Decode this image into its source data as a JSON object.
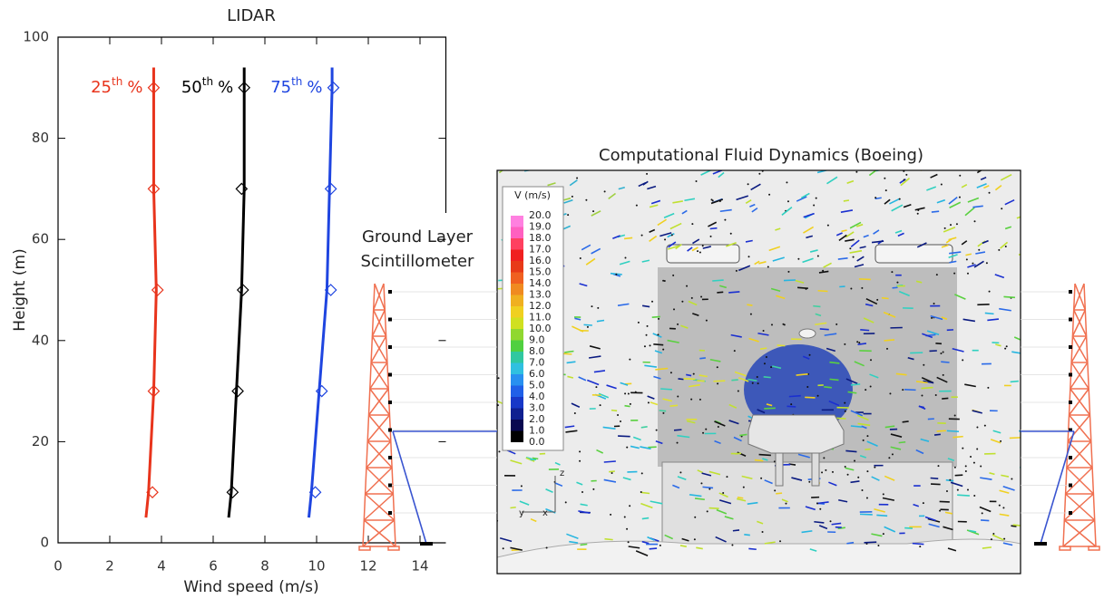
{
  "chart_data": {
    "type": "line",
    "title": "LIDAR",
    "x_label": "Wind speed (m/s)",
    "y_label": "Height (m)",
    "xlim": [
      0,
      15
    ],
    "xticks": [
      0,
      2,
      4,
      6,
      8,
      10,
      12,
      14
    ],
    "ylim": [
      0,
      100
    ],
    "yticks": [
      0,
      20,
      40,
      60,
      80,
      100
    ],
    "heights": [
      5,
      10,
      30,
      50,
      70,
      90,
      94
    ],
    "marker_heights": [
      10,
      30,
      50,
      70,
      90
    ],
    "series": [
      {
        "label": {
          "number": "25",
          "superscript": "th",
          "unit": "%"
        },
        "color": "#e8341c",
        "values": [
          3.4,
          3.5,
          3.7,
          3.8,
          3.7,
          3.7,
          3.7
        ],
        "marker_values": [
          3.65,
          3.7,
          3.85,
          3.7,
          3.7
        ]
      },
      {
        "label": {
          "number": "50",
          "superscript": "th",
          "unit": "%"
        },
        "color": "#000000",
        "values": [
          6.6,
          6.7,
          6.9,
          7.1,
          7.2,
          7.2,
          7.2
        ],
        "marker_values": [
          6.75,
          6.95,
          7.15,
          7.1,
          7.2
        ]
      },
      {
        "label": {
          "number": "75",
          "superscript": "th",
          "unit": "%"
        },
        "color": "#1f45e0",
        "values": [
          9.7,
          9.8,
          10.1,
          10.4,
          10.5,
          10.6,
          10.6
        ],
        "marker_values": [
          9.95,
          10.2,
          10.55,
          10.55,
          10.65
        ]
      }
    ]
  },
  "scintillometer": {
    "label_lines": [
      "Ground Layer",
      "Scintillometer"
    ]
  },
  "cfd_panel": {
    "title": "Computational Fluid Dynamics (Boeing)",
    "colorbar": {
      "title": "V (m/s)",
      "labels": [
        "20.0",
        "19.0",
        "18.0",
        "17.0",
        "16.0",
        "15.0",
        "14.0",
        "13.0",
        "12.0",
        "11.0",
        "10.0",
        "9.0",
        "8.0",
        "7.0",
        "6.0",
        "5.0",
        "4.0",
        "3.0",
        "2.0",
        "1.0",
        "0.0"
      ]
    },
    "axes": [
      "z",
      "y",
      "x"
    ]
  }
}
